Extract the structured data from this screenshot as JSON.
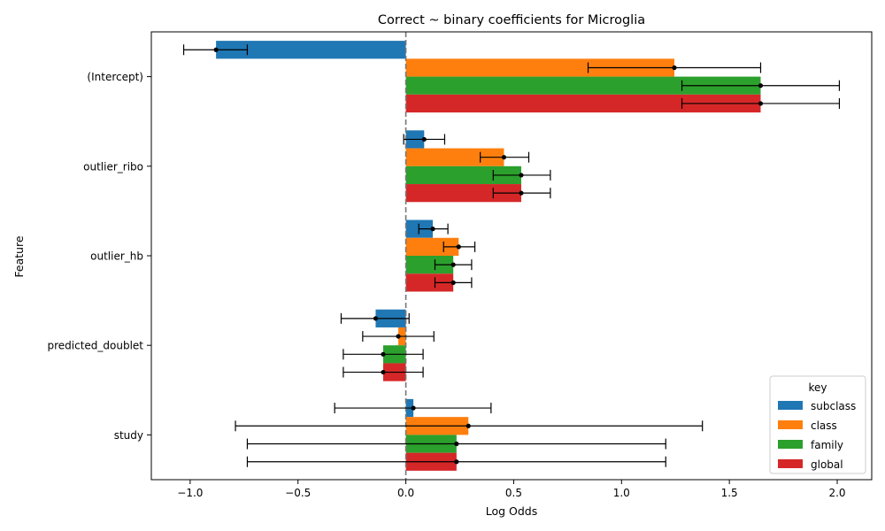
{
  "chart_data": {
    "type": "bar",
    "orientation": "horizontal",
    "title": "Correct ~ binary coefficients for Microglia",
    "xlabel": "Log Odds",
    "ylabel": "Feature",
    "xlim": [
      -1.18,
      2.16
    ],
    "xticks": [
      -1.0,
      -0.5,
      0.0,
      0.5,
      1.0,
      1.5,
      2.0
    ],
    "xtick_labels": [
      "−1.0",
      "−0.5",
      "0.0",
      "0.5",
      "1.0",
      "1.5",
      "2.0"
    ],
    "reference_line": {
      "x": 0,
      "style": "dashed",
      "color": "#777777"
    },
    "categories": [
      "(Intercept)",
      "outlier_ribo",
      "outlier_hb",
      "predicted_doublet",
      "study"
    ],
    "legend": {
      "title": "key",
      "position": "lower-right"
    },
    "series": [
      {
        "name": "subclass",
        "color": "#1f77b4",
        "values": [
          -0.88,
          0.085,
          0.125,
          -0.14,
          0.035
        ],
        "ci_low": [
          -1.03,
          -0.01,
          0.06,
          -0.3,
          -0.33
        ],
        "ci_high": [
          -0.735,
          0.18,
          0.195,
          0.015,
          0.395
        ]
      },
      {
        "name": "class",
        "color": "#ff7f0e",
        "values": [
          1.245,
          0.455,
          0.245,
          -0.035,
          0.29
        ],
        "ci_low": [
          0.845,
          0.345,
          0.175,
          -0.2,
          -0.79
        ],
        "ci_high": [
          1.645,
          0.57,
          0.32,
          0.13,
          1.375
        ]
      },
      {
        "name": "family",
        "color": "#2ca02c",
        "values": [
          1.645,
          0.535,
          0.22,
          -0.105,
          0.235
        ],
        "ci_low": [
          1.28,
          0.405,
          0.135,
          -0.29,
          -0.735
        ],
        "ci_high": [
          2.01,
          0.67,
          0.305,
          0.08,
          1.205
        ]
      },
      {
        "name": "global",
        "color": "#d62728",
        "values": [
          1.645,
          0.535,
          0.22,
          -0.105,
          0.235
        ],
        "ci_low": [
          1.28,
          0.405,
          0.135,
          -0.29,
          -0.735
        ],
        "ci_high": [
          2.01,
          0.67,
          0.305,
          0.08,
          1.205
        ]
      }
    ]
  }
}
